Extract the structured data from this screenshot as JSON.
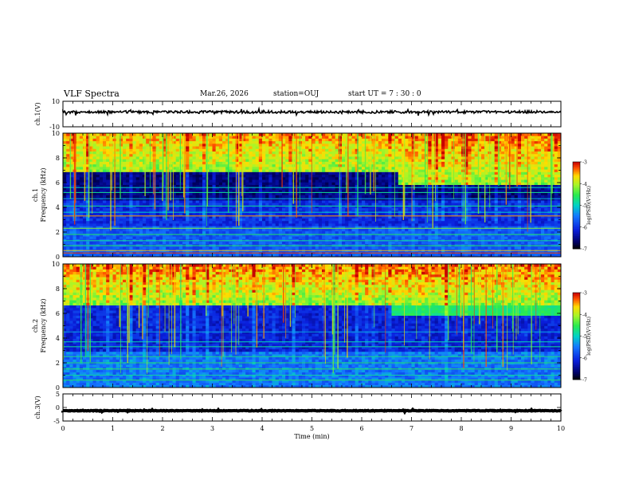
{
  "header": {
    "title": "VLF Spectra",
    "date": "Mar.26, 2026",
    "station": "station=OUJ",
    "start": "start  UT  =   7 : 30 : 0"
  },
  "chart_data": [
    {
      "type": "line",
      "name": "ch1-waveform",
      "ylabel": "ch.1(V)",
      "ylim": [
        -10,
        10
      ],
      "yticks": [
        "10",
        "-10"
      ],
      "xlim": [
        0,
        10
      ],
      "baseline_v": 1.6
    },
    {
      "type": "heatmap",
      "name": "ch1-spectrogram",
      "ylabel": "ch.1\nFrequency (kHz)",
      "ylim": [
        0,
        10
      ],
      "yticks": [
        "0",
        "2",
        "4",
        "6",
        "8",
        "10"
      ],
      "xlim": [
        0,
        10
      ],
      "colorbar": {
        "label": "log(PSD)(V²/Hz)",
        "range": [
          -7,
          -3
        ],
        "ticks": [
          "-3",
          "-4",
          "-5",
          "-6",
          "-7"
        ]
      }
    },
    {
      "type": "heatmap",
      "name": "ch2-spectrogram",
      "ylabel": "ch.2\nFrequency (kHz)",
      "ylim": [
        0,
        10
      ],
      "yticks": [
        "0",
        "2",
        "4",
        "6",
        "8",
        "10"
      ],
      "xlim": [
        0,
        10
      ],
      "colorbar": {
        "label": "log(PSD)(V²/Hz)",
        "range": [
          -7,
          -3
        ],
        "ticks": [
          "-3",
          "-4",
          "-5",
          "-6",
          "-7"
        ]
      }
    },
    {
      "type": "line",
      "name": "ch3-waveform",
      "ylabel": "ch.3(V)",
      "ylim": [
        -5,
        5
      ],
      "yticks": [
        "5",
        "0",
        "-5"
      ],
      "xlim": [
        0,
        10
      ],
      "xticks": [
        "0",
        "1",
        "2",
        "3",
        "4",
        "5",
        "6",
        "7",
        "8",
        "9",
        "10"
      ],
      "xlabel": "Time (min)",
      "baseline_v": -1.2
    }
  ]
}
